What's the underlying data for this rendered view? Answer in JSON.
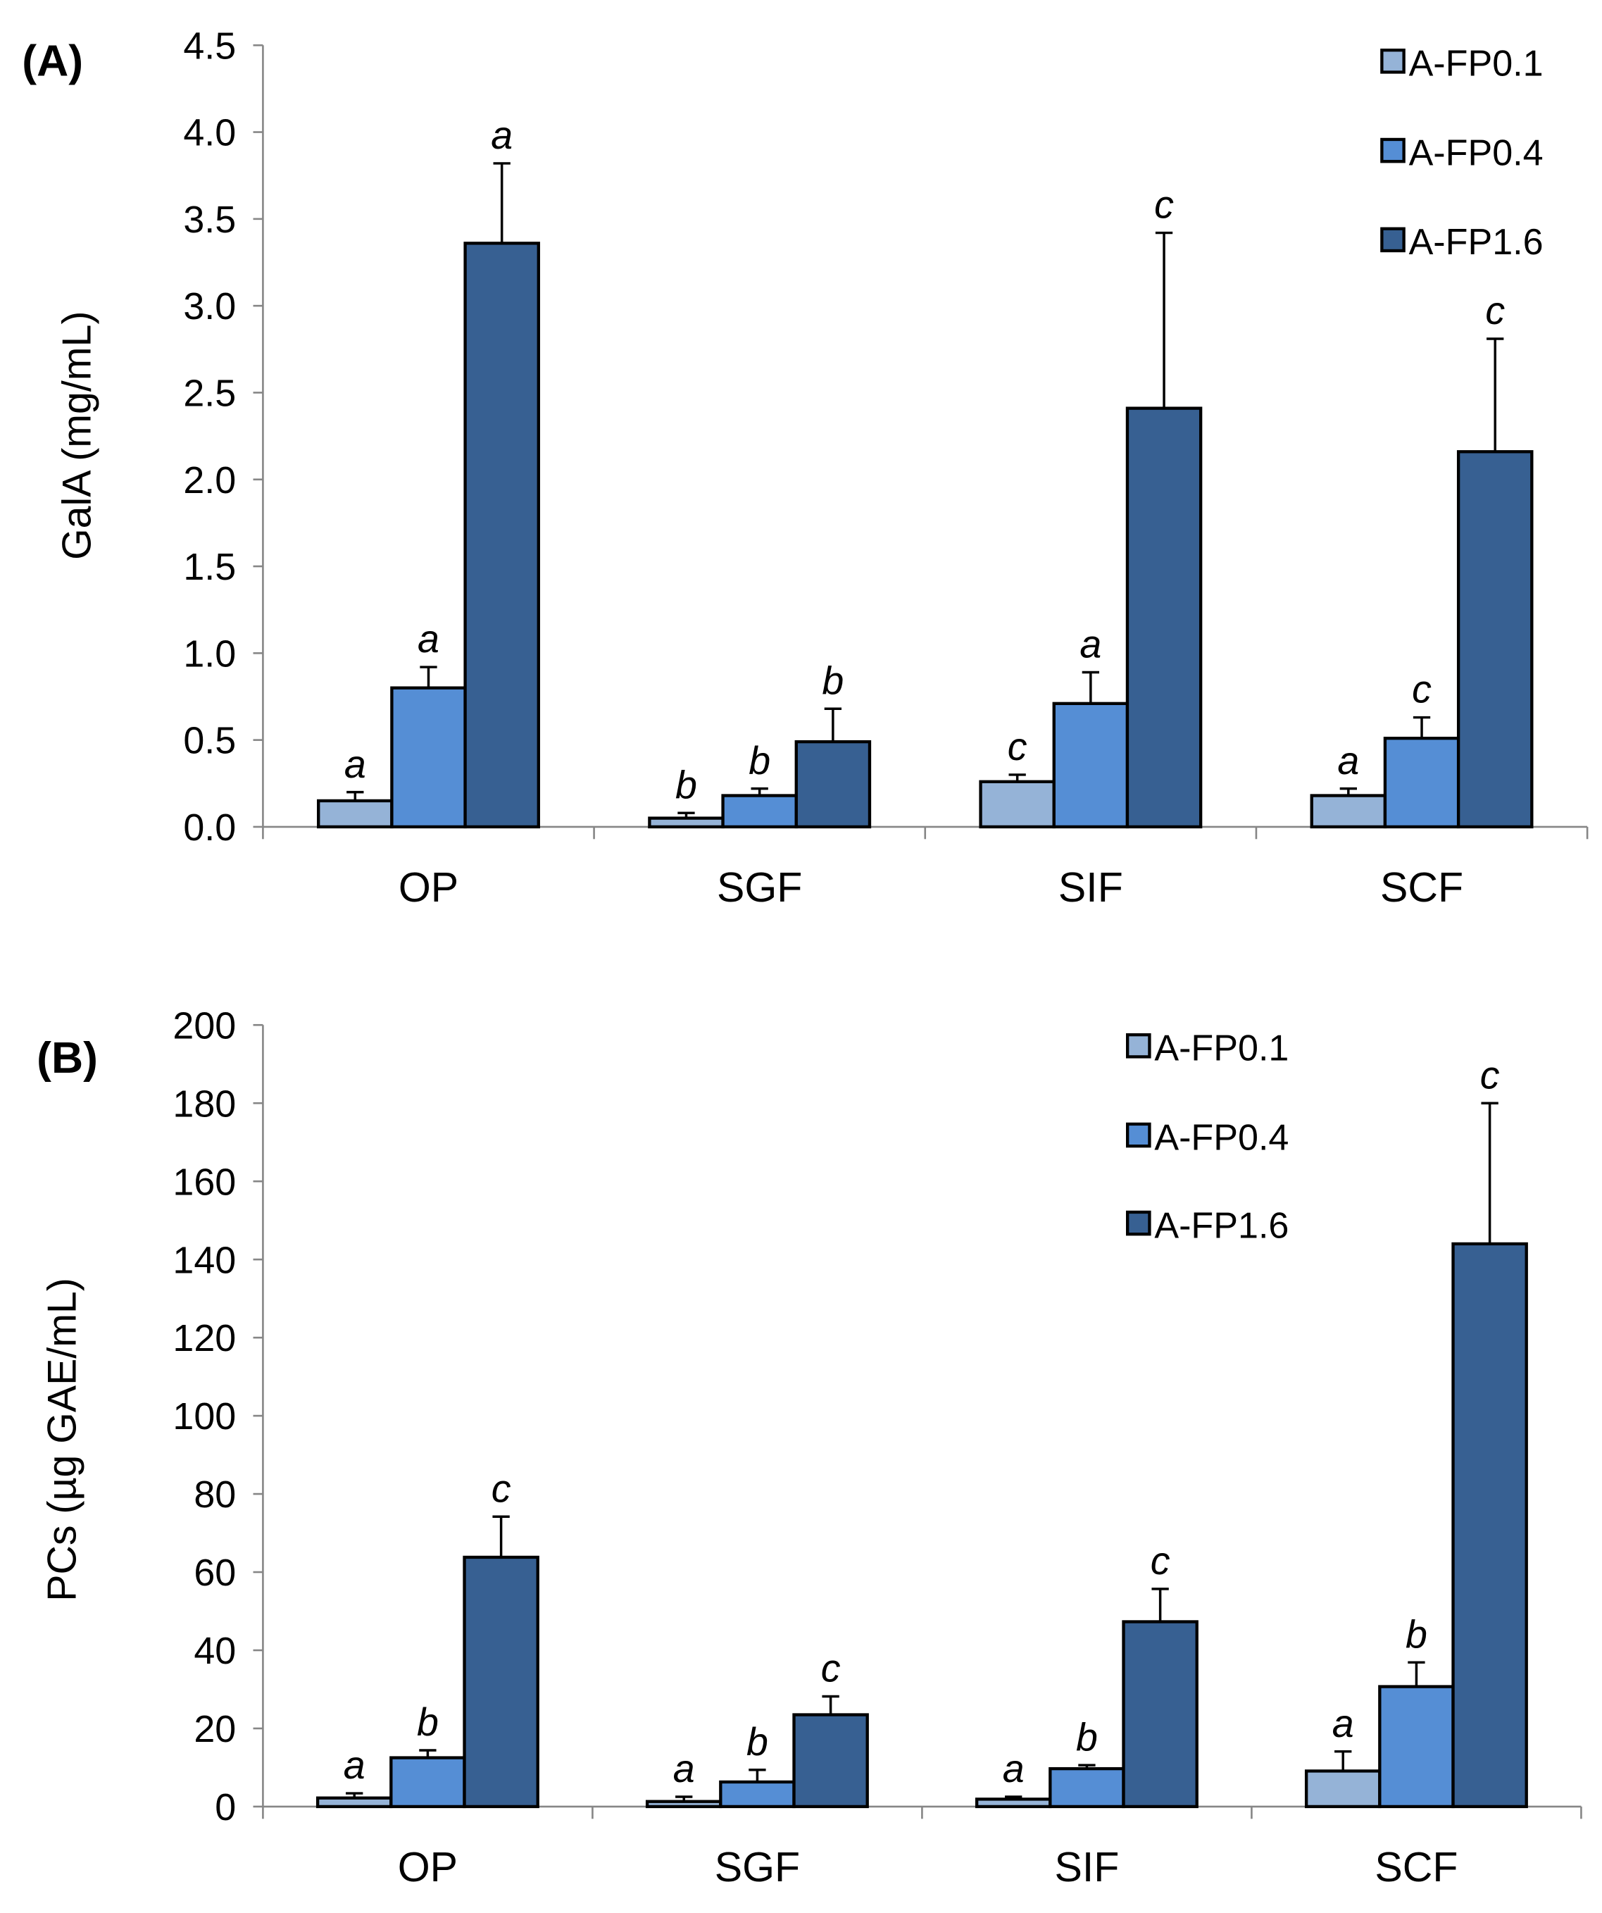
{
  "chart_data": [
    {
      "type": "bar",
      "panel_label": "(A)",
      "title": "",
      "xlabel": "",
      "ylabel": "GalA (mg/mL)",
      "ylim": [
        0,
        4.5
      ],
      "yticks": [
        "0.0",
        "0.5",
        "1.0",
        "1.5",
        "2.0",
        "2.5",
        "3.0",
        "3.5",
        "4.0",
        "4.5"
      ],
      "ytick_values": [
        0,
        0.5,
        1.0,
        1.5,
        2.0,
        2.5,
        3.0,
        3.5,
        4.0,
        4.5
      ],
      "categories": [
        "OP",
        "SGF",
        "SIF",
        "SCF"
      ],
      "legend_position": "top-right",
      "grid": false,
      "series": [
        {
          "name": "A-FP0.1",
          "color": "#95b3d7",
          "values": [
            0.15,
            0.05,
            0.26,
            0.18
          ],
          "errors": [
            0.05,
            0.03,
            0.04,
            0.04
          ],
          "letters": [
            "a",
            "b",
            "c",
            "a"
          ]
        },
        {
          "name": "A-FP0.4",
          "color": "#558ed5",
          "values": [
            0.8,
            0.18,
            0.71,
            0.51
          ],
          "errors": [
            0.12,
            0.04,
            0.18,
            0.12
          ],
          "letters": [
            "a",
            "b",
            "a",
            "c"
          ]
        },
        {
          "name": "A-FP1.6",
          "color": "#376092",
          "values": [
            3.36,
            0.49,
            2.41,
            2.16
          ],
          "errors": [
            0.46,
            0.19,
            1.01,
            0.65
          ],
          "letters": [
            "a",
            "b",
            "c",
            "c"
          ]
        }
      ]
    },
    {
      "type": "bar",
      "panel_label": "(B)",
      "title": "",
      "xlabel": "",
      "ylabel": "PCs (µg GAE/mL)",
      "ylim": [
        0,
        200
      ],
      "yticks": [
        "0",
        "20",
        "40",
        "60",
        "80",
        "100",
        "120",
        "140",
        "160",
        "180",
        "200"
      ],
      "ytick_values": [
        0,
        20,
        40,
        60,
        80,
        100,
        120,
        140,
        160,
        180,
        200
      ],
      "categories": [
        "OP",
        "SGF",
        "SIF",
        "SCF"
      ],
      "legend_position": "top-center",
      "grid": false,
      "series": [
        {
          "name": "A-FP0.1",
          "color": "#95b3d7",
          "values": [
            2.2,
            1.3,
            1.9,
            9.1
          ],
          "errors": [
            1.2,
            1.2,
            0.6,
            5.0
          ],
          "letters": [
            "a",
            "a",
            "a",
            "a"
          ]
        },
        {
          "name": "A-FP0.4",
          "color": "#558ed5",
          "values": [
            12.5,
            6.3,
            9.7,
            30.7
          ],
          "errors": [
            1.9,
            3.1,
            0.9,
            6.2
          ],
          "letters": [
            "b",
            "b",
            "b",
            "b"
          ]
        },
        {
          "name": "A-FP1.6",
          "color": "#376092",
          "values": [
            63.8,
            23.5,
            47.3,
            144
          ],
          "errors": [
            10.4,
            4.7,
            8.4,
            36
          ],
          "letters": [
            "c",
            "c",
            "c",
            "c"
          ]
        }
      ]
    }
  ]
}
